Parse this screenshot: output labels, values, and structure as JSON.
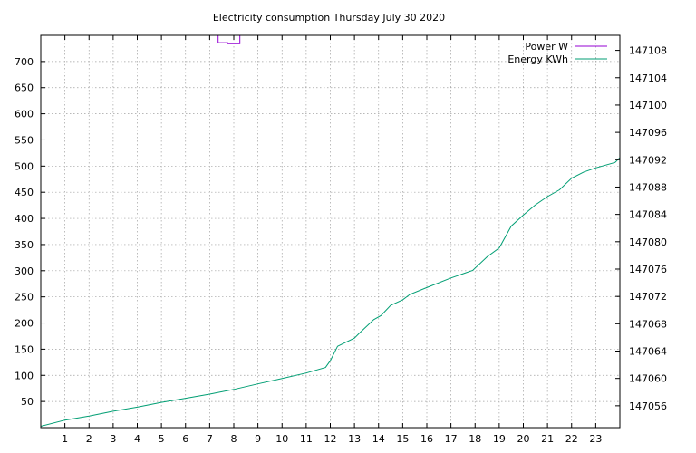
{
  "chart_data": {
    "type": "line",
    "title": "Electricity consumption Thursday July 30 2020",
    "xlabel": "",
    "ylabel": "",
    "xlim": [
      0,
      24
    ],
    "ylim": [
      0,
      750
    ],
    "y2lim": [
      147052.8,
      147110.2
    ],
    "x_ticks": [
      1,
      2,
      3,
      4,
      5,
      6,
      7,
      8,
      9,
      10,
      11,
      12,
      13,
      14,
      15,
      16,
      17,
      18,
      19,
      20,
      21,
      22,
      23
    ],
    "y_ticks": [
      50,
      100,
      150,
      200,
      250,
      300,
      350,
      400,
      450,
      500,
      550,
      600,
      650,
      700
    ],
    "y2_ticks": [
      147056,
      147060,
      147064,
      147068,
      147072,
      147076,
      147080,
      147084,
      147088,
      147092,
      147096,
      147100,
      147104,
      147108
    ],
    "grid": true,
    "legend_position": "top-right",
    "series": [
      {
        "name": "Power W",
        "axis": "left",
        "color": "#9400d3",
        "x": [
          6.0,
          6.4,
          6.4,
          7.35,
          7.35,
          7.75,
          7.75,
          8.25,
          8.25
        ],
        "y": [
          750,
          750,
          760,
          760,
          736,
          736,
          734,
          734,
          760
        ]
      },
      {
        "name": "Energy KWh",
        "axis": "right",
        "color": "#009e73",
        "x": [
          0,
          1,
          2,
          3,
          4,
          5,
          6,
          7,
          8,
          9,
          10,
          11,
          11.8,
          12.0,
          12.3,
          13.0,
          13.2,
          13.8,
          14.1,
          14.5,
          15.0,
          15.3,
          16.0,
          17.0,
          17.9,
          18.5,
          19.0,
          19.5,
          20.0,
          20.5,
          21.0,
          21.5,
          22.0,
          22.5,
          23.0,
          23.8,
          24.0
        ],
        "y": [
          147053.0,
          147053.9,
          147054.5,
          147055.2,
          147055.8,
          147056.5,
          147057.1,
          147057.7,
          147058.4,
          147059.2,
          147060.0,
          147060.8,
          147061.6,
          147062.6,
          147064.7,
          147065.9,
          147066.6,
          147068.6,
          147069.2,
          147070.7,
          147071.5,
          147072.3,
          147073.3,
          147074.7,
          147075.8,
          147077.8,
          147079.1,
          147082.3,
          147083.9,
          147085.4,
          147086.6,
          147087.6,
          147089.3,
          147090.2,
          147090.8,
          147091.6,
          147092.3
        ]
      }
    ]
  }
}
